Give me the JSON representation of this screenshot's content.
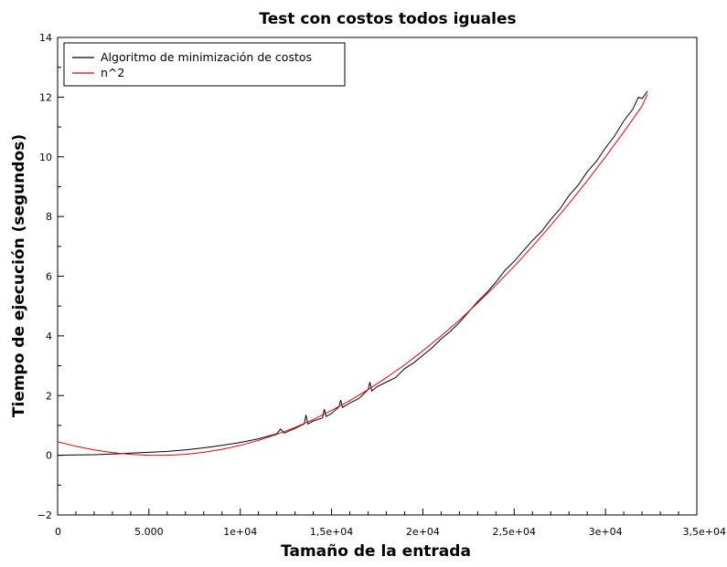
{
  "chart_data": {
    "type": "line",
    "title": "Test con costos todos iguales",
    "xlabel": "Tamaño de la entrada",
    "ylabel": "Tiempo de ejecución (segundos)",
    "xlim": [
      0,
      35000
    ],
    "ylim": [
      -2,
      14
    ],
    "x_ticks": [
      {
        "value": 0,
        "label": "0"
      },
      {
        "value": 5000,
        "label": "5.000"
      },
      {
        "value": 10000,
        "label": "1e+04"
      },
      {
        "value": 15000,
        "label": "1,5e+04"
      },
      {
        "value": 20000,
        "label": "2e+04"
      },
      {
        "value": 25000,
        "label": "2,5e+04"
      },
      {
        "value": 30000,
        "label": "3e+04"
      },
      {
        "value": 35000,
        "label": "3,5e+04"
      }
    ],
    "y_ticks": [
      {
        "value": -2,
        "label": "−2"
      },
      {
        "value": 0,
        "label": "0"
      },
      {
        "value": 2,
        "label": "2"
      },
      {
        "value": 4,
        "label": "4"
      },
      {
        "value": 6,
        "label": "6"
      },
      {
        "value": 8,
        "label": "8"
      },
      {
        "value": 10,
        "label": "10"
      },
      {
        "value": 12,
        "label": "12"
      },
      {
        "value": 14,
        "label": "14"
      }
    ],
    "grid": false,
    "legend_position": "top-left",
    "series": [
      {
        "name": "Algoritmo de minimización de costos",
        "color": "#000000",
        "points": [
          [
            0,
            0.0
          ],
          [
            1000,
            0.01
          ],
          [
            2000,
            0.02
          ],
          [
            3000,
            0.04
          ],
          [
            4000,
            0.07
          ],
          [
            5000,
            0.1
          ],
          [
            6000,
            0.13
          ],
          [
            7000,
            0.18
          ],
          [
            8000,
            0.25
          ],
          [
            9000,
            0.33
          ],
          [
            10000,
            0.43
          ],
          [
            11000,
            0.55
          ],
          [
            12000,
            0.72
          ],
          [
            12200,
            0.88
          ],
          [
            12400,
            0.74
          ],
          [
            13000,
            0.9
          ],
          [
            13500,
            1.05
          ],
          [
            13600,
            1.35
          ],
          [
            13700,
            1.05
          ],
          [
            14000,
            1.15
          ],
          [
            14500,
            1.25
          ],
          [
            14600,
            1.55
          ],
          [
            14700,
            1.3
          ],
          [
            15000,
            1.4
          ],
          [
            15400,
            1.62
          ],
          [
            15500,
            1.85
          ],
          [
            15600,
            1.6
          ],
          [
            16000,
            1.75
          ],
          [
            16500,
            1.9
          ],
          [
            17000,
            2.2
          ],
          [
            17100,
            2.45
          ],
          [
            17200,
            2.15
          ],
          [
            17500,
            2.3
          ],
          [
            18000,
            2.45
          ],
          [
            18500,
            2.6
          ],
          [
            19000,
            2.9
          ],
          [
            19500,
            3.1
          ],
          [
            20000,
            3.35
          ],
          [
            20500,
            3.6
          ],
          [
            21000,
            3.9
          ],
          [
            21500,
            4.15
          ],
          [
            22000,
            4.45
          ],
          [
            22500,
            4.8
          ],
          [
            23000,
            5.15
          ],
          [
            23500,
            5.45
          ],
          [
            24000,
            5.8
          ],
          [
            24500,
            6.2
          ],
          [
            25000,
            6.5
          ],
          [
            25500,
            6.85
          ],
          [
            26000,
            7.2
          ],
          [
            26500,
            7.5
          ],
          [
            27000,
            7.9
          ],
          [
            27500,
            8.25
          ],
          [
            28000,
            8.7
          ],
          [
            28500,
            9.05
          ],
          [
            29000,
            9.5
          ],
          [
            29500,
            9.85
          ],
          [
            30000,
            10.3
          ],
          [
            30500,
            10.7
          ],
          [
            31000,
            11.2
          ],
          [
            31500,
            11.6
          ],
          [
            31800,
            12.0
          ],
          [
            32000,
            11.95
          ],
          [
            32300,
            12.2
          ]
        ]
      },
      {
        "name": "n^2",
        "color": "#e8000b",
        "points": [
          [
            0,
            0.45
          ],
          [
            1000,
            0.3
          ],
          [
            2000,
            0.18
          ],
          [
            3000,
            0.09
          ],
          [
            4000,
            0.03
          ],
          [
            5000,
            0.0
          ],
          [
            6000,
            0.0
          ],
          [
            7000,
            0.03
          ],
          [
            8000,
            0.1
          ],
          [
            9000,
            0.2
          ],
          [
            10000,
            0.33
          ],
          [
            11000,
            0.5
          ],
          [
            12000,
            0.7
          ],
          [
            13000,
            0.93
          ],
          [
            14000,
            1.2
          ],
          [
            15000,
            1.5
          ],
          [
            16000,
            1.83
          ],
          [
            17000,
            2.2
          ],
          [
            18000,
            2.6
          ],
          [
            19000,
            3.03
          ],
          [
            20000,
            3.5
          ],
          [
            21000,
            4.0
          ],
          [
            22000,
            4.53
          ],
          [
            23000,
            5.1
          ],
          [
            24000,
            5.7
          ],
          [
            25000,
            6.33
          ],
          [
            26000,
            7.0
          ],
          [
            27000,
            7.7
          ],
          [
            28000,
            8.43
          ],
          [
            29000,
            9.2
          ],
          [
            30000,
            10.0
          ],
          [
            31000,
            10.83
          ],
          [
            32000,
            11.7
          ],
          [
            32300,
            12.1
          ]
        ]
      }
    ]
  }
}
